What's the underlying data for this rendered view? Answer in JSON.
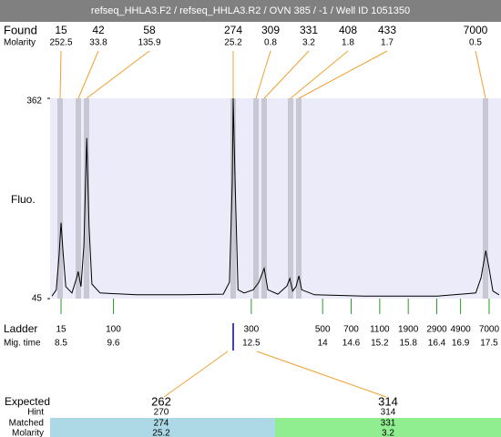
{
  "header": {
    "title": "refseq_HHLA3.F2 / refseq_HHLA3.R2 / OVN 385 / -1 / Well ID 1051350"
  },
  "found": {
    "label": "Found",
    "molarity_label": "Molarity",
    "peaks": [
      {
        "size": 15,
        "molarity": 252.5
      },
      {
        "size": 42,
        "molarity": 33.8
      },
      {
        "size": 58,
        "molarity": 135.9
      },
      {
        "size": 274,
        "molarity": 25.2
      },
      {
        "size": 309,
        "molarity": 0.8
      },
      {
        "size": 331,
        "molarity": 3.2
      },
      {
        "size": 408,
        "molarity": 1.8
      },
      {
        "size": 433,
        "molarity": 1.7
      },
      {
        "size": 7000,
        "molarity": 0.5
      }
    ]
  },
  "chart_data": {
    "type": "line",
    "y_label": "Fluo.",
    "color": "#000000",
    "x": [
      8.31,
      8.4,
      8.46,
      8.5,
      8.54,
      8.6,
      8.73,
      8.83,
      8.86,
      8.92,
      8.98,
      9.04,
      9.09,
      9.15,
      9.32,
      10.09,
      11.05,
      11.91,
      12.04,
      12.1,
      12.12,
      12.16,
      12.22,
      12.35,
      12.54,
      12.66,
      12.77,
      12.85,
      13.06,
      13.25,
      13.31,
      13.37,
      13.44,
      13.5,
      13.56,
      13.83,
      14.88,
      16.41,
      17.22,
      17.33,
      17.43,
      17.5,
      17.58,
      17.71
    ],
    "values": [
      49,
      59,
      114,
      165,
      121,
      64,
      54,
      78,
      88,
      64,
      129,
      299,
      158,
      68,
      54,
      51,
      51,
      52,
      71,
      229,
      362,
      229,
      59,
      54,
      59,
      71,
      93,
      59,
      52,
      65,
      77,
      57,
      64,
      81,
      59,
      51,
      49,
      49,
      54,
      78,
      121,
      93,
      57,
      51
    ],
    "xlim": [
      8.27,
      17.75
    ],
    "ylim": [
      45,
      362
    ],
    "yticks": [
      45,
      362
    ]
  },
  "ladder": {
    "label": "Ladder",
    "time_label": "Mig. time",
    "sizes": [
      15,
      100,
      300,
      500,
      700,
      1100,
      1900,
      2900,
      4900,
      7000
    ],
    "times": [
      8.5,
      9.6,
      12.5,
      14,
      14.6,
      15.2,
      15.8,
      16.4,
      16.9,
      17.5
    ]
  },
  "expected": {
    "label": "Expected",
    "hint_label": "Hint",
    "matched_label": "Matched",
    "molarity_label": "Molarity",
    "rows": [
      {
        "expected": 262,
        "hint": 270,
        "matched": 274,
        "molarity": 25.2
      },
      {
        "expected": 314,
        "hint": 314,
        "matched": 331,
        "molarity": 3.2
      }
    ]
  }
}
